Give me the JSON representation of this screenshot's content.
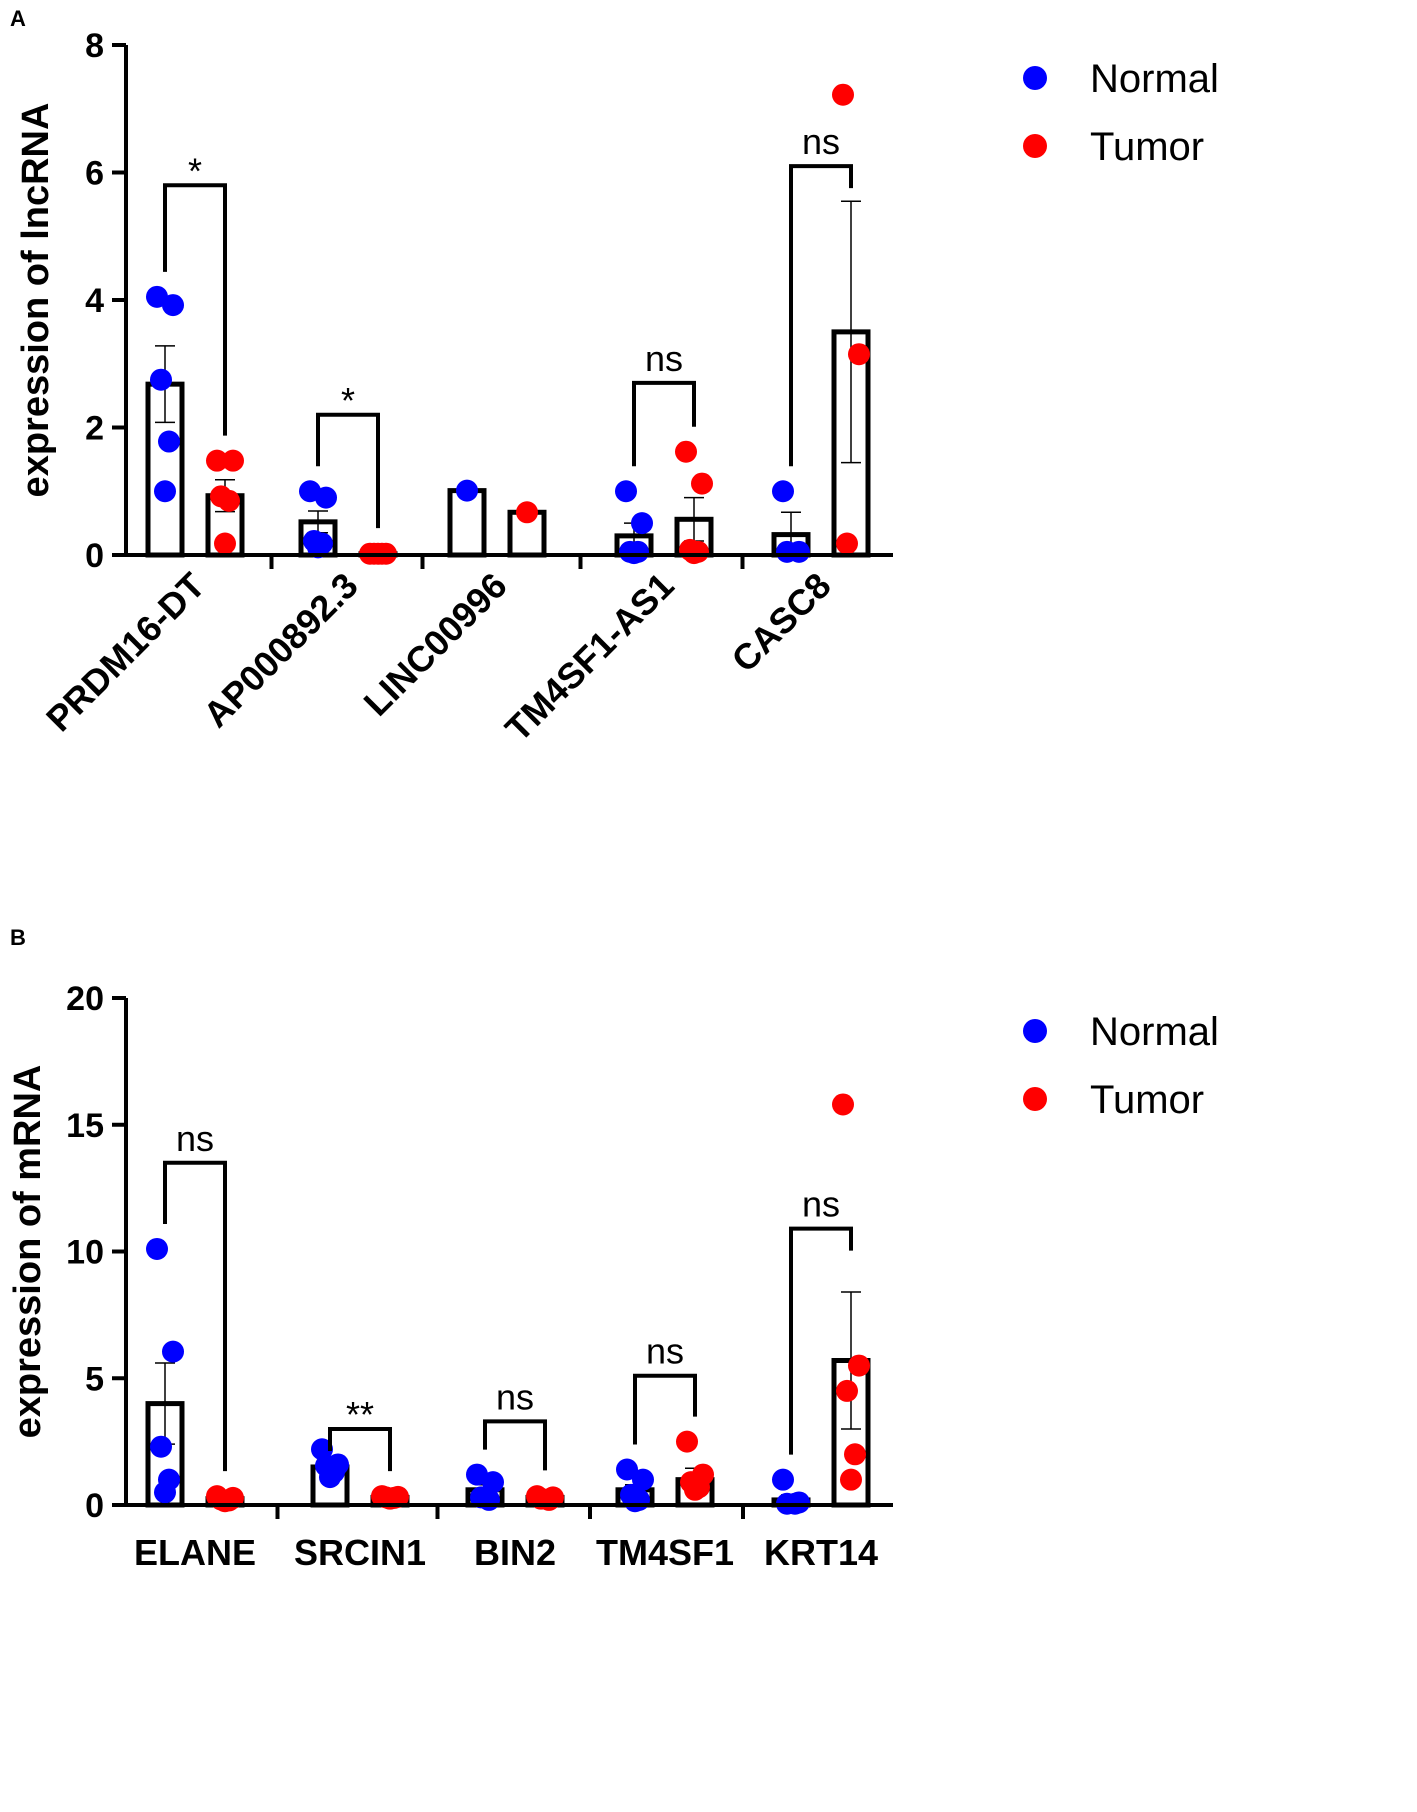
{
  "chart_data": [
    {
      "panel": "A",
      "type": "bar",
      "title": "",
      "xlabel": "",
      "ylabel": "expression of lncRNA",
      "ylim": [
        0,
        8
      ],
      "yticks": [
        0,
        2,
        4,
        6,
        8
      ],
      "categories": [
        "PRDM16-DT",
        "AP000892.3",
        "LINC00996",
        "TM4SF1-AS1",
        "CASC8"
      ],
      "legend": [
        "Normal",
        "Tumor"
      ],
      "legend_position": "top-right",
      "series": [
        {
          "name": "Normal",
          "color": "#0000ff",
          "means": [
            2.68,
            0.52,
            1.01,
            0.3,
            0.32
          ],
          "errors": [
            0.6,
            0.17,
            0,
            0.2,
            0.35
          ],
          "points": [
            [
              4.05,
              3.92,
              2.75,
              1.78,
              1.0
            ],
            [
              1.0,
              0.9,
              0.22,
              0.18,
              0.12
            ],
            [
              1.01
            ],
            [
              1.0,
              0.5,
              0.05,
              0.05,
              0.03
            ],
            [
              1.0,
              0.05,
              0.05
            ]
          ]
        },
        {
          "name": "Tumor",
          "color": "#ff0000",
          "means": [
            0.93,
            0.02,
            0.67,
            0.56,
            3.5
          ],
          "errors": [
            0.25,
            0.01,
            0,
            0.34,
            2.05
          ],
          "points": [
            [
              1.48,
              1.48,
              0.92,
              0.85,
              0.18
            ],
            [
              0.02,
              0.02,
              0.02,
              0.02,
              0.02
            ],
            [
              0.67
            ],
            [
              1.62,
              1.12,
              0.08,
              0.05,
              0.03
            ],
            [
              7.22,
              3.15,
              0.18
            ]
          ]
        }
      ],
      "comparisons": [
        {
          "category": "PRDM16-DT",
          "label": "*",
          "y": 5.8
        },
        {
          "category": "AP000892.3",
          "label": "*",
          "y": 2.2
        },
        {
          "category": "TM4SF1-AS1",
          "label": "ns",
          "y": 2.7
        },
        {
          "category": "CASC8",
          "label": "ns",
          "y": 6.1
        }
      ]
    },
    {
      "panel": "B",
      "type": "bar",
      "title": "",
      "xlabel": "",
      "ylabel": "expression of mRNA",
      "ylim": [
        0,
        20
      ],
      "yticks": [
        0,
        5,
        10,
        15,
        20
      ],
      "categories": [
        "ELANE",
        "SRCIN1",
        "BIN2",
        "TM4SF1",
        "KRT14"
      ],
      "legend": [
        "Normal",
        "Tumor"
      ],
      "legend_position": "top-right",
      "series": [
        {
          "name": "Normal",
          "color": "#0000ff",
          "means": [
            4.0,
            1.5,
            0.6,
            0.6,
            0.2
          ],
          "errors": [
            1.6,
            0.2,
            0.2,
            0.2,
            0.2
          ],
          "points": [
            [
              10.1,
              6.05,
              2.3,
              1.0,
              0.5
            ],
            [
              2.2,
              1.6,
              1.55,
              1.3,
              1.1
            ],
            [
              1.2,
              0.9,
              0.3,
              0.2
            ],
            [
              1.4,
              1.0,
              0.4,
              0.2,
              0.15
            ],
            [
              1.0,
              0.1,
              0.05,
              0.05
            ]
          ]
        },
        {
          "name": "Tumor",
          "color": "#ff0000",
          "means": [
            0.25,
            0.3,
            0.3,
            1.0,
            5.7
          ],
          "errors": [
            0.08,
            0.05,
            0.08,
            0.45,
            2.7
          ],
          "points": [
            [
              0.35,
              0.28,
              0.22,
              0.18,
              0.15
            ],
            [
              0.35,
              0.32,
              0.3,
              0.28,
              0.25
            ],
            [
              0.35,
              0.3,
              0.25,
              0.2
            ],
            [
              2.5,
              1.2,
              0.9,
              0.7,
              0.6
            ],
            [
              15.8,
              5.5,
              4.5,
              2.0,
              1.0
            ]
          ]
        }
      ],
      "comparisons": [
        {
          "category": "ELANE",
          "label": "ns",
          "y": 13.5
        },
        {
          "category": "SRCIN1",
          "label": "**",
          "y": 3.0
        },
        {
          "category": "BIN2",
          "label": "ns",
          "y": 3.3
        },
        {
          "category": "TM4SF1",
          "label": "ns",
          "y": 5.1
        },
        {
          "category": "KRT14",
          "label": "ns",
          "y": 10.9
        }
      ]
    }
  ]
}
